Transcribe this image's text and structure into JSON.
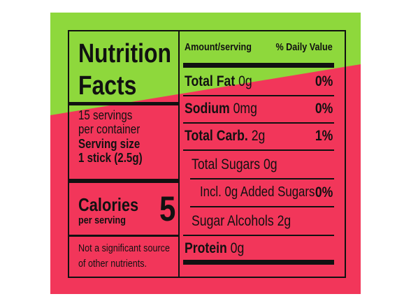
{
  "left": {
    "title": [
      "Nutrition",
      "Facts"
    ],
    "servings": [
      "15 servings",
      "per container"
    ],
    "serving_size": [
      "Serving size",
      "1 stick (2.5g)"
    ],
    "calories_label": "Calories",
    "calories_sub": "per serving",
    "calories_value": "5",
    "footnote": [
      "Not a significant source",
      "of other nutrients."
    ]
  },
  "right": {
    "header": {
      "amount": "Amount/serving",
      "dv": "% Daily Value"
    },
    "rows": [
      {
        "name": "Total Fat",
        "amount": "0g",
        "dv": "0%"
      },
      {
        "name": "Sodium",
        "amount": "0mg",
        "dv": "0%"
      },
      {
        "name": "Total Carb.",
        "amount": "2g",
        "dv": "1%"
      },
      {
        "name": "Total Sugars 0g"
      },
      {
        "name": "Incl. 0g Added Sugars",
        "dv": "0%"
      },
      {
        "name": "Sugar Alcohols 2g"
      },
      {
        "name": "Protein",
        "amount": "0g"
      }
    ]
  }
}
